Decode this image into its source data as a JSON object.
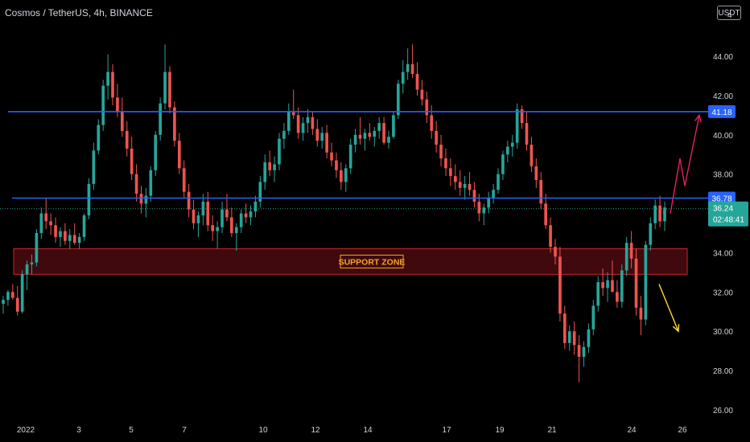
{
  "header": {
    "title": "Cosmos / TetherUS, 4h, BINANCE",
    "currency": "USDT",
    "corner_tick": "4"
  },
  "colors": {
    "up": "#26a69a",
    "down": "#ef5350",
    "resistance_line": "#2962ff",
    "zone_fill": "#4a0b10",
    "zone_border": "#c62828",
    "zone_label": "#f5a623",
    "bull_arrow": "#e91e63",
    "bear_arrow": "#fdd835",
    "price_tag": "#26a69a",
    "level_tag": "#2962ff"
  },
  "chart_data": {
    "type": "candlestick",
    "title": "Cosmos / TetherUS, 4h, BINANCE",
    "y_axis": {
      "ticks": [
        "44.00",
        "42.00",
        "40.00",
        "38.00",
        "36.00",
        "34.00",
        "32.00",
        "30.00",
        "28.00",
        "26.00"
      ],
      "range": [
        25.4,
        45.8
      ]
    },
    "x_axis": {
      "ticks": [
        "2022",
        "3",
        "5",
        "7",
        "10",
        "12",
        "14",
        "17",
        "19",
        "21",
        "24",
        "26"
      ]
    },
    "horizontal_levels": [
      {
        "label": "41.18",
        "value": 41.18
      },
      {
        "label": "36.78",
        "value": 36.78
      }
    ],
    "current_price": {
      "label": "36.24",
      "value": 36.24,
      "countdown": "02:48:41"
    },
    "support_zone": {
      "label": "SUPPORT ZONE",
      "low": 32.9,
      "high": 34.2
    },
    "scenarios": [
      {
        "direction": "up",
        "points": [
          [
            36.0,
            0
          ],
          [
            38.8,
            2
          ],
          [
            37.4,
            3
          ],
          [
            41.0,
            6
          ]
        ]
      },
      {
        "direction": "down",
        "points": [
          [
            32.4,
            0
          ],
          [
            30.0,
            3
          ]
        ]
      }
    ],
    "candles": [
      [
        31.4,
        31.8,
        30.9,
        31.6
      ],
      [
        31.6,
        32.1,
        31.3,
        32.0
      ],
      [
        32.0,
        32.4,
        31.6,
        31.7
      ],
      [
        31.7,
        32.3,
        30.8,
        31.0
      ],
      [
        31.0,
        33.1,
        30.9,
        32.9
      ],
      [
        32.9,
        33.6,
        32.1,
        33.4
      ],
      [
        33.4,
        33.9,
        32.9,
        33.5
      ],
      [
        33.5,
        35.2,
        33.3,
        35.0
      ],
      [
        35.0,
        36.3,
        34.7,
        36.0
      ],
      [
        36.0,
        36.8,
        35.2,
        35.6
      ],
      [
        35.6,
        36.0,
        34.9,
        35.4
      ],
      [
        35.4,
        35.8,
        34.5,
        34.8
      ],
      [
        34.8,
        35.3,
        34.3,
        35.1
      ],
      [
        35.1,
        35.5,
        34.4,
        34.6
      ],
      [
        34.6,
        35.2,
        34.2,
        34.9
      ],
      [
        34.9,
        35.5,
        34.4,
        34.5
      ],
      [
        34.5,
        35.0,
        34.2,
        34.8
      ],
      [
        34.8,
        36.0,
        34.6,
        35.9
      ],
      [
        35.9,
        37.8,
        35.7,
        37.5
      ],
      [
        37.5,
        39.6,
        37.2,
        39.2
      ],
      [
        39.2,
        40.8,
        39.0,
        40.5
      ],
      [
        40.5,
        42.8,
        40.2,
        42.5
      ],
      [
        42.5,
        44.1,
        41.8,
        43.2
      ],
      [
        43.2,
        43.6,
        41.5,
        41.9
      ],
      [
        41.9,
        42.6,
        40.9,
        41.2
      ],
      [
        41.2,
        41.9,
        39.9,
        40.2
      ],
      [
        40.2,
        40.7,
        38.9,
        39.3
      ],
      [
        39.3,
        39.9,
        37.7,
        38.0
      ],
      [
        38.0,
        38.5,
        36.6,
        37.0
      ],
      [
        37.0,
        37.4,
        36.0,
        36.5
      ],
      [
        36.5,
        37.3,
        35.8,
        36.9
      ],
      [
        36.9,
        38.4,
        36.6,
        38.2
      ],
      [
        38.2,
        40.2,
        37.9,
        40.0
      ],
      [
        40.0,
        41.9,
        39.7,
        41.6
      ],
      [
        41.6,
        44.6,
        41.3,
        43.2
      ],
      [
        43.2,
        43.5,
        41.1,
        41.4
      ],
      [
        41.4,
        41.7,
        39.4,
        39.7
      ],
      [
        39.7,
        40.1,
        38.0,
        38.3
      ],
      [
        38.3,
        38.7,
        36.8,
        37.1
      ],
      [
        37.1,
        37.5,
        35.8,
        36.2
      ],
      [
        36.2,
        36.7,
        35.2,
        35.5
      ],
      [
        35.5,
        36.1,
        34.8,
        35.9
      ],
      [
        35.9,
        37.0,
        35.4,
        36.6
      ],
      [
        36.6,
        37.1,
        35.1,
        35.4
      ],
      [
        35.4,
        35.9,
        34.6,
        35.1
      ],
      [
        35.1,
        35.6,
        34.2,
        35.3
      ],
      [
        35.3,
        36.6,
        35.0,
        36.2
      ],
      [
        36.2,
        37.0,
        35.6,
        35.8
      ],
      [
        35.8,
        36.3,
        34.8,
        35.0
      ],
      [
        35.0,
        35.5,
        34.1,
        35.3
      ],
      [
        35.3,
        36.2,
        35.0,
        36.0
      ],
      [
        36.0,
        36.5,
        35.5,
        35.8
      ],
      [
        35.8,
        36.4,
        35.4,
        36.1
      ],
      [
        36.1,
        36.9,
        35.8,
        36.6
      ],
      [
        36.6,
        37.9,
        36.3,
        37.6
      ],
      [
        37.6,
        39.0,
        37.2,
        38.6
      ],
      [
        38.6,
        39.2,
        37.9,
        38.2
      ],
      [
        38.2,
        38.9,
        37.6,
        38.5
      ],
      [
        38.5,
        40.1,
        38.2,
        39.8
      ],
      [
        39.8,
        40.6,
        39.3,
        40.2
      ],
      [
        40.2,
        41.6,
        40.0,
        41.2
      ],
      [
        41.2,
        42.3,
        40.8,
        41.0
      ],
      [
        41.0,
        41.4,
        39.8,
        40.1
      ],
      [
        40.1,
        40.9,
        39.7,
        40.6
      ],
      [
        40.6,
        41.3,
        40.1,
        40.9
      ],
      [
        40.9,
        41.2,
        40.0,
        40.3
      ],
      [
        40.3,
        40.8,
        39.4,
        39.7
      ],
      [
        39.7,
        40.4,
        39.3,
        40.1
      ],
      [
        40.1,
        40.5,
        38.8,
        39.1
      ],
      [
        39.1,
        39.6,
        38.4,
        38.7
      ],
      [
        38.7,
        39.1,
        37.8,
        38.2
      ],
      [
        38.2,
        38.6,
        37.2,
        37.6
      ],
      [
        37.6,
        38.5,
        37.1,
        38.3
      ],
      [
        38.3,
        39.8,
        38.0,
        39.5
      ],
      [
        39.5,
        40.3,
        39.1,
        40.0
      ],
      [
        40.0,
        40.9,
        39.5,
        39.8
      ],
      [
        39.8,
        40.3,
        39.2,
        40.1
      ],
      [
        40.1,
        40.6,
        39.7,
        39.9
      ],
      [
        39.9,
        40.4,
        39.4,
        40.2
      ],
      [
        40.2,
        40.9,
        39.8,
        40.6
      ],
      [
        40.6,
        40.9,
        39.5,
        39.6
      ],
      [
        39.6,
        40.2,
        39.3,
        39.9
      ],
      [
        39.9,
        41.2,
        39.8,
        41.0
      ],
      [
        41.0,
        42.8,
        40.8,
        42.6
      ],
      [
        42.6,
        43.8,
        42.1,
        43.2
      ],
      [
        43.2,
        44.4,
        42.8,
        43.6
      ],
      [
        43.6,
        44.6,
        42.9,
        43.1
      ],
      [
        43.1,
        43.7,
        42.0,
        42.3
      ],
      [
        42.3,
        42.8,
        41.5,
        41.8
      ],
      [
        41.8,
        42.2,
        40.6,
        41.0
      ],
      [
        41.0,
        41.5,
        39.8,
        40.2
      ],
      [
        40.2,
        40.7,
        39.1,
        39.5
      ],
      [
        39.5,
        40.0,
        38.4,
        38.8
      ],
      [
        38.8,
        39.3,
        37.9,
        38.3
      ],
      [
        38.3,
        38.8,
        37.4,
        37.9
      ],
      [
        37.9,
        38.5,
        37.2,
        37.6
      ],
      [
        37.6,
        38.2,
        36.9,
        37.3
      ],
      [
        37.3,
        37.9,
        36.7,
        37.5
      ],
      [
        37.5,
        38.1,
        36.9,
        37.2
      ],
      [
        37.2,
        37.6,
        36.3,
        36.6
      ],
      [
        36.6,
        37.0,
        35.6,
        36.0
      ],
      [
        36.0,
        36.5,
        35.4,
        36.3
      ],
      [
        36.3,
        37.1,
        36.0,
        36.8
      ],
      [
        36.8,
        37.5,
        36.5,
        37.2
      ],
      [
        37.2,
        38.3,
        37.0,
        38.0
      ],
      [
        38.0,
        39.2,
        37.7,
        39.0
      ],
      [
        39.0,
        39.7,
        38.6,
        39.4
      ],
      [
        39.4,
        40.0,
        38.9,
        39.6
      ],
      [
        39.6,
        41.6,
        39.3,
        41.3
      ],
      [
        41.3,
        41.5,
        40.3,
        40.6
      ],
      [
        40.6,
        41.2,
        39.2,
        39.5
      ],
      [
        39.5,
        39.9,
        38.1,
        38.4
      ],
      [
        38.4,
        38.8,
        37.3,
        37.7
      ],
      [
        37.7,
        38.1,
        36.2,
        36.5
      ],
      [
        36.5,
        37.0,
        35.2,
        35.4
      ],
      [
        35.4,
        35.8,
        34.0,
        34.3
      ],
      [
        34.3,
        34.7,
        33.4,
        33.8
      ],
      [
        33.8,
        34.3,
        30.5,
        30.9
      ],
      [
        30.9,
        31.3,
        29.1,
        29.4
      ],
      [
        29.4,
        30.3,
        29.0,
        30.0
      ],
      [
        30.0,
        30.5,
        28.8,
        29.3
      ],
      [
        29.3,
        29.8,
        27.4,
        28.7
      ],
      [
        28.7,
        29.5,
        28.2,
        29.2
      ],
      [
        29.2,
        30.4,
        28.9,
        30.1
      ],
      [
        30.1,
        31.6,
        29.8,
        31.3
      ],
      [
        31.3,
        32.8,
        31.0,
        32.5
      ],
      [
        32.5,
        33.2,
        31.8,
        32.2
      ],
      [
        32.2,
        33.0,
        31.5,
        32.6
      ],
      [
        32.6,
        33.6,
        32.1,
        32.0
      ],
      [
        32.0,
        32.6,
        31.2,
        31.5
      ],
      [
        31.5,
        33.4,
        31.2,
        33.1
      ],
      [
        33.1,
        34.8,
        32.8,
        34.5
      ],
      [
        34.5,
        35.1,
        33.2,
        33.7
      ],
      [
        33.7,
        34.2,
        30.8,
        31.2
      ],
      [
        31.2,
        31.8,
        29.8,
        30.6
      ],
      [
        30.6,
        34.6,
        30.3,
        34.4
      ],
      [
        34.4,
        35.8,
        34.1,
        35.5
      ],
      [
        35.5,
        36.7,
        35.2,
        36.4
      ],
      [
        36.4,
        36.9,
        35.3,
        35.6
      ],
      [
        35.6,
        36.6,
        35.1,
        36.3
      ]
    ]
  }
}
